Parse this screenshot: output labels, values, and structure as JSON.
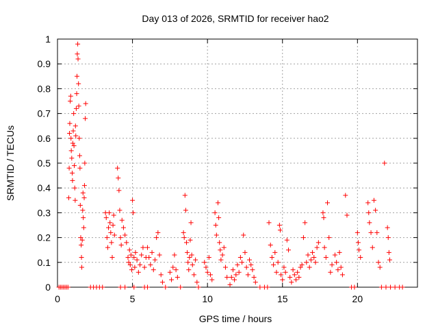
{
  "chart_data": {
    "type": "scatter",
    "title": "Day 013 of 2026, SRMTID for receiver hao2",
    "xlabel": "GPS time / hours",
    "ylabel": "SRMTID / TECUs",
    "xlim": [
      0,
      24
    ],
    "ylim": [
      0,
      1
    ],
    "xticks": [
      0,
      5,
      10,
      15,
      20
    ],
    "xtick_labels": [
      "0",
      "5",
      "10",
      "15",
      "20"
    ],
    "yticks": [
      0,
      0.1,
      0.2,
      0.3,
      0.4,
      0.5,
      0.6,
      0.7,
      0.8,
      0.9,
      1
    ],
    "ytick_labels": [
      "0",
      "0.1",
      "0.2",
      "0.3",
      "0.4",
      "0.5",
      "0.6",
      "0.7",
      "0.8",
      "0.9",
      "1"
    ],
    "grid": true,
    "marker": "+",
    "color": "#ff0000",
    "series": [
      {
        "points": [
          [
            0.1,
            0
          ],
          [
            0.2,
            0
          ],
          [
            0.3,
            0
          ],
          [
            0.4,
            0
          ],
          [
            0.5,
            0
          ],
          [
            0.6,
            0
          ],
          [
            0.7,
            0
          ],
          [
            0.75,
            0.36
          ],
          [
            0.78,
            0.48
          ],
          [
            0.8,
            0.62
          ],
          [
            0.82,
            0.66
          ],
          [
            0.85,
            0.75
          ],
          [
            0.88,
            0.77
          ],
          [
            0.9,
            0.6
          ],
          [
            0.92,
            0.55
          ],
          [
            0.95,
            0.52
          ],
          [
            0.98,
            0.46
          ],
          [
            1.0,
            0.43
          ],
          [
            1.02,
            0.58
          ],
          [
            1.05,
            0.63
          ],
          [
            1.08,
            0.7
          ],
          [
            1.1,
            0.57
          ],
          [
            1.12,
            0.49
          ],
          [
            1.15,
            0.4
          ],
          [
            1.18,
            0.35
          ],
          [
            1.2,
            0.65
          ],
          [
            1.22,
            0.61
          ],
          [
            1.25,
            0.72
          ],
          [
            1.28,
            0.78
          ],
          [
            1.3,
            0.85
          ],
          [
            1.32,
            0.94
          ],
          [
            1.35,
            0.98
          ],
          [
            1.37,
            0.92
          ],
          [
            1.4,
            0.82
          ],
          [
            1.42,
            0.73
          ],
          [
            1.45,
            0.6
          ],
          [
            1.48,
            0.53
          ],
          [
            1.5,
            0.48
          ],
          [
            1.52,
            0.33
          ],
          [
            1.55,
            0.2
          ],
          [
            1.58,
            0.17
          ],
          [
            1.6,
            0.12
          ],
          [
            1.62,
            0.08
          ],
          [
            1.65,
            0.19
          ],
          [
            1.68,
            0.31
          ],
          [
            1.7,
            0.38
          ],
          [
            1.72,
            0.28
          ],
          [
            1.75,
            0.24
          ],
          [
            1.78,
            0.36
          ],
          [
            1.8,
            0.41
          ],
          [
            1.82,
            0.5
          ],
          [
            1.85,
            0.68
          ],
          [
            1.88,
            0.74
          ],
          [
            2.2,
            0
          ],
          [
            2.4,
            0
          ],
          [
            2.6,
            0
          ],
          [
            2.8,
            0
          ],
          [
            3.0,
            0
          ],
          [
            3.2,
            0.3
          ],
          [
            3.25,
            0.28
          ],
          [
            3.3,
            0.2
          ],
          [
            3.35,
            0.16
          ],
          [
            3.4,
            0.24
          ],
          [
            3.45,
            0.3
          ],
          [
            3.5,
            0.26
          ],
          [
            3.55,
            0.22
          ],
          [
            3.6,
            0.18
          ],
          [
            3.65,
            0.12
          ],
          [
            3.7,
            0.25
          ],
          [
            3.75,
            0.29
          ],
          [
            3.8,
            0.21
          ],
          [
            4.0,
            0.48
          ],
          [
            4.05,
            0.44
          ],
          [
            4.1,
            0.39
          ],
          [
            4.15,
            0.31
          ],
          [
            4.2,
            0.2
          ],
          [
            4.25,
            0.17
          ],
          [
            4.3,
            0.27
          ],
          [
            4.4,
            0.24
          ],
          [
            4.5,
            0.21
          ],
          [
            4.6,
            0.18
          ],
          [
            4.7,
            0.12
          ],
          [
            4.75,
            0.1
          ],
          [
            4.8,
            0.15
          ],
          [
            4.85,
            0.09
          ],
          [
            4.9,
            0.13
          ],
          [
            4.95,
            0.07
          ],
          [
            5.0,
            0.35
          ],
          [
            5.05,
            0.3
          ],
          [
            5.1,
            0.12
          ],
          [
            5.15,
            0.08
          ],
          [
            5.2,
            0.14
          ],
          [
            5.3,
            0.11
          ],
          [
            5.4,
            0.06
          ],
          [
            5.5,
            0.09
          ],
          [
            5.6,
            0.13
          ],
          [
            5.7,
            0.16
          ],
          [
            5.8,
            0.08
          ],
          [
            5.9,
            0.12
          ],
          [
            4.2,
            0
          ],
          [
            4.5,
            0
          ],
          [
            5.1,
            0
          ],
          [
            5.8,
            0
          ],
          [
            6.0,
            0
          ],
          [
            6.0,
            0.16
          ],
          [
            6.1,
            0.12
          ],
          [
            6.2,
            0.09
          ],
          [
            6.3,
            0.14
          ],
          [
            6.4,
            0.07
          ],
          [
            6.5,
            0.11
          ],
          [
            6.6,
            0.2
          ],
          [
            6.7,
            0.22
          ],
          [
            6.8,
            0.13
          ],
          [
            6.9,
            0.05
          ],
          [
            7.0,
            0.02
          ],
          [
            7.2,
            0
          ],
          [
            7.5,
            0.06
          ],
          [
            7.6,
            0.03
          ],
          [
            7.7,
            0.08
          ],
          [
            7.8,
            0.13
          ],
          [
            7.9,
            0.07
          ],
          [
            8.0,
            0.04
          ],
          [
            8.2,
            0
          ],
          [
            8.4,
            0.22
          ],
          [
            8.45,
            0.2
          ],
          [
            8.5,
            0.37
          ],
          [
            8.55,
            0.31
          ],
          [
            8.6,
            0.18
          ],
          [
            8.65,
            0.14
          ],
          [
            8.7,
            0.1
          ],
          [
            8.75,
            0.07
          ],
          [
            8.8,
            0.12
          ],
          [
            8.85,
            0.19
          ],
          [
            8.9,
            0.26
          ],
          [
            8.95,
            0.13
          ],
          [
            9.0,
            0.09
          ],
          [
            9.1,
            0.05
          ],
          [
            9.2,
            0.11
          ],
          [
            9.3,
            0.02
          ],
          [
            9.4,
            0
          ],
          [
            9.8,
            0.1
          ],
          [
            9.9,
            0.08
          ],
          [
            10.0,
            0.06
          ],
          [
            10.1,
            0.12
          ],
          [
            10.2,
            0.05
          ],
          [
            10.3,
            0.03
          ],
          [
            10.5,
            0.3
          ],
          [
            10.55,
            0.25
          ],
          [
            10.6,
            0.21
          ],
          [
            10.7,
            0.34
          ],
          [
            10.75,
            0.28
          ],
          [
            10.8,
            0.18
          ],
          [
            10.85,
            0.15
          ],
          [
            10.9,
            0.11
          ],
          [
            11.0,
            0.13
          ],
          [
            11.1,
            0.16
          ],
          [
            11.2,
            0.08
          ],
          [
            11.3,
            0.04
          ],
          [
            11.5,
            0.01
          ],
          [
            11.6,
            0.04
          ],
          [
            11.7,
            0.07
          ],
          [
            11.8,
            0.03
          ],
          [
            11.9,
            0.05
          ],
          [
            12.0,
            0.09
          ],
          [
            12.1,
            0.06
          ],
          [
            12.2,
            0.12
          ],
          [
            12.3,
            0.1
          ],
          [
            12.4,
            0.21
          ],
          [
            12.5,
            0.14
          ],
          [
            12.6,
            0.08
          ],
          [
            12.7,
            0.05
          ],
          [
            12.8,
            0.11
          ],
          [
            12.9,
            0.09
          ],
          [
            13.0,
            0.07
          ],
          [
            13.1,
            0.04
          ],
          [
            13.2,
            0.02
          ],
          [
            13.5,
            0
          ],
          [
            13.8,
            0
          ],
          [
            14.0,
            0
          ],
          [
            14.1,
            0.26
          ],
          [
            14.2,
            0.17
          ],
          [
            14.3,
            0.12
          ],
          [
            14.4,
            0.09
          ],
          [
            14.5,
            0.14
          ],
          [
            14.6,
            0.06
          ],
          [
            14.7,
            0.1
          ],
          [
            14.8,
            0.25
          ],
          [
            14.85,
            0.23
          ],
          [
            14.9,
            0.05
          ],
          [
            15.0,
            0.03
          ],
          [
            15.1,
            0.08
          ],
          [
            15.2,
            0.06
          ],
          [
            15.3,
            0.19
          ],
          [
            15.4,
            0.15
          ],
          [
            15.5,
            0.04
          ],
          [
            15.6,
            0.02
          ],
          [
            15.7,
            0.07
          ],
          [
            15.8,
            0.05
          ],
          [
            15.9,
            0.03
          ],
          [
            16.0,
            0.06
          ],
          [
            16.1,
            0.04
          ],
          [
            16.2,
            0.08
          ],
          [
            16.3,
            0.09
          ],
          [
            16.4,
            0.2
          ],
          [
            16.5,
            0.26
          ],
          [
            16.6,
            0.1
          ],
          [
            16.7,
            0.13
          ],
          [
            16.8,
            0.08
          ],
          [
            16.9,
            0.11
          ],
          [
            17.0,
            0.14
          ],
          [
            17.1,
            0.12
          ],
          [
            17.2,
            0.1
          ],
          [
            17.3,
            0.16
          ],
          [
            17.4,
            0.18
          ],
          [
            17.7,
            0.3
          ],
          [
            17.75,
            0.28
          ],
          [
            17.8,
            0.16
          ],
          [
            17.9,
            0.12
          ],
          [
            18.0,
            0.34
          ],
          [
            18.1,
            0.2
          ],
          [
            18.2,
            0.06
          ],
          [
            18.3,
            0.09
          ],
          [
            18.5,
            0.13
          ],
          [
            18.6,
            0.1
          ],
          [
            18.7,
            0.07
          ],
          [
            18.8,
            0.14
          ],
          [
            18.9,
            0.08
          ],
          [
            19.0,
            0.05
          ],
          [
            19.2,
            0.37
          ],
          [
            19.3,
            0.29
          ],
          [
            19.6,
            0
          ],
          [
            19.8,
            0
          ],
          [
            20.0,
            0.22
          ],
          [
            20.05,
            0.18
          ],
          [
            20.1,
            0.15
          ],
          [
            20.2,
            0.12
          ],
          [
            20.7,
            0.34
          ],
          [
            20.75,
            0.3
          ],
          [
            20.8,
            0.26
          ],
          [
            20.9,
            0.22
          ],
          [
            21.0,
            0.16
          ],
          [
            21.1,
            0.35
          ],
          [
            21.2,
            0.31
          ],
          [
            21.3,
            0.22
          ],
          [
            21.4,
            0.1
          ],
          [
            21.5,
            0.08
          ],
          [
            21.8,
            0.5
          ],
          [
            22.0,
            0.24
          ],
          [
            22.05,
            0.2
          ],
          [
            22.1,
            0.14
          ],
          [
            22.15,
            0.11
          ],
          [
            21.6,
            0
          ],
          [
            21.9,
            0
          ],
          [
            22.2,
            0
          ],
          [
            22.5,
            0
          ],
          [
            22.8,
            0
          ],
          [
            23.0,
            0
          ]
        ]
      }
    ]
  }
}
